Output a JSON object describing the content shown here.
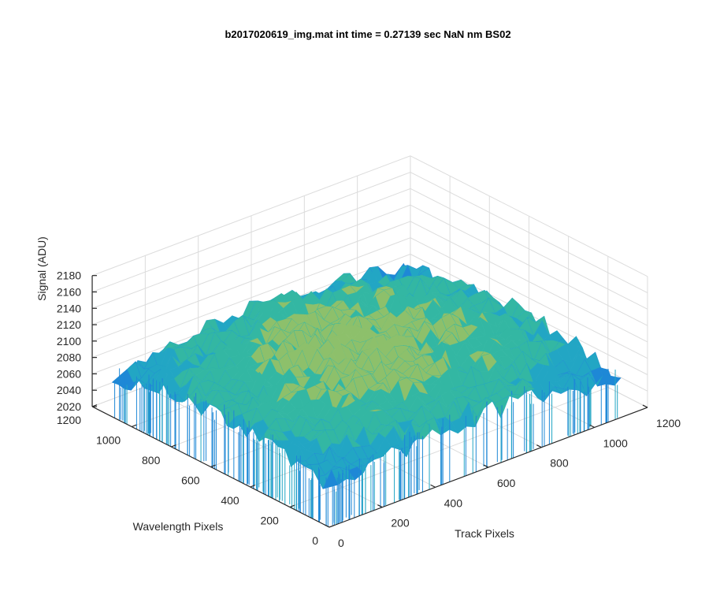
{
  "chart_data": {
    "type": "surface",
    "title": "b2017020619_img.mat int time = 0.27139 sec  NaN nm BS02",
    "xlabel": "Track Pixels",
    "ylabel": "Wavelength Pixels",
    "zlabel": "Signal (ADU)",
    "xlim": [
      0,
      1200
    ],
    "ylim": [
      0,
      1200
    ],
    "zlim": [
      2020,
      2180
    ],
    "xticks": [
      "0",
      "200",
      "400",
      "600",
      "800",
      "1000",
      "1200"
    ],
    "yticks": [
      "0",
      "200",
      "400",
      "600",
      "800",
      "1000",
      "1200"
    ],
    "zticks": [
      "2020",
      "2040",
      "2060",
      "2080",
      "2100",
      "2120",
      "2140",
      "2160",
      "2180"
    ],
    "grid": true,
    "colormap": [
      "#0072bd",
      "#1e88d6",
      "#22a6c4",
      "#33b7a3",
      "#8dc06b",
      "#d2c045",
      "#f2c830"
    ],
    "surface": {
      "x_range": [
        0,
        1100
      ],
      "y_range": [
        0,
        1100
      ],
      "center_signal": 2110,
      "edge_signal": 2065,
      "noise_amplitude": 25
    }
  }
}
